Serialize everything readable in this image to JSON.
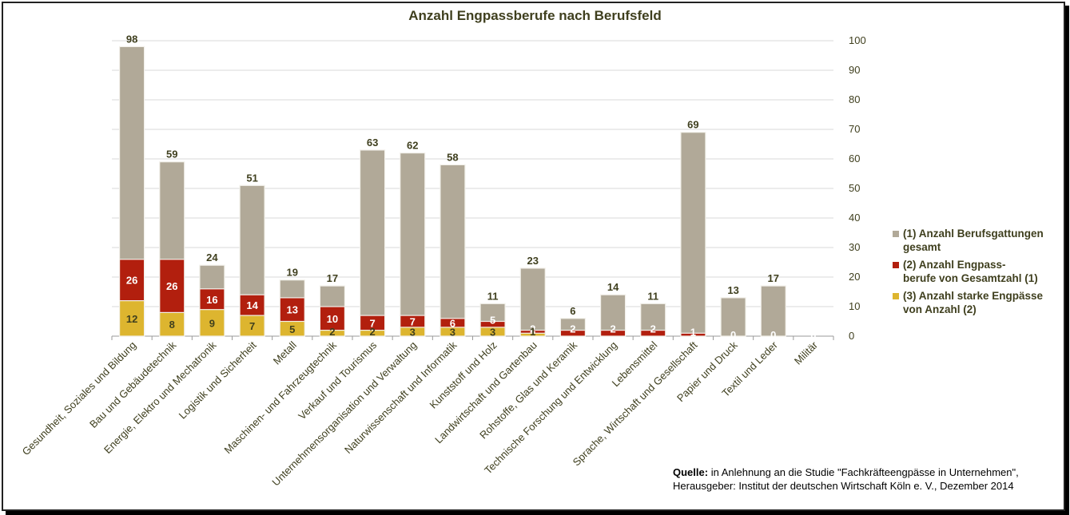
{
  "chart_data": {
    "type": "bar",
    "stacked": false,
    "title": "Anzahl Engpassberufe nach Berufsfeld",
    "categories": [
      "Gesundheit, Soziales und Bildung",
      "Bau und Gebäudetechnik",
      "Energie, Elektro und Mechatronik",
      "Logistik und Sicherheit",
      "Metall",
      "Maschinen- und Fahrzeugtechnik",
      "Verkauf und Tourismus",
      "Unternehmensorganisation und Verwaltung",
      "Naturwissenschaft und Informatik",
      "Kunststoff und Holz",
      "Landwirtschaft und Gartenbau",
      "Rohstoffe, Glas und Keramik",
      "Technische Forschung und Entwicklung",
      "Lebensmittel",
      "Sprache, Wirtschaft und Gesellschaft",
      "Papier und Druck",
      "Textil und Leder",
      "Militär"
    ],
    "series": [
      {
        "name": "(1) Anzahl Berufsgattungen gesamt",
        "color": "#b1a998",
        "values": [
          98,
          59,
          24,
          51,
          19,
          17,
          63,
          62,
          58,
          11,
          23,
          6,
          14,
          11,
          69,
          13,
          17,
          0
        ]
      },
      {
        "name": "(2) Anzahl Engpass- berufe von Gesamtzahl (1)",
        "color": "#b21f0e",
        "values": [
          26,
          26,
          16,
          14,
          13,
          10,
          7,
          7,
          6,
          5,
          2,
          2,
          2,
          2,
          1,
          0,
          0,
          0
        ]
      },
      {
        "name": "(3) Anzahl starke Engpässe von Anzahl (2)",
        "color": "#ddb52f",
        "values": [
          12,
          8,
          9,
          7,
          5,
          2,
          2,
          3,
          3,
          3,
          1,
          0,
          0,
          0,
          0,
          0,
          0,
          0
        ]
      }
    ],
    "ylim": [
      0,
      100
    ],
    "yticks": [
      0,
      10,
      20,
      30,
      40,
      50,
      60,
      70,
      80,
      90,
      100
    ],
    "y_axis_side": "right",
    "grid": true,
    "legend_position": "right"
  },
  "legend": [
    {
      "line1": "(1) Anzahl Berufsgattungen",
      "line2": "gesamt",
      "color": "#b1a998"
    },
    {
      "line1": "(2) Anzahl Engpass-",
      "line2": "berufe von Gesamtzahl (1)",
      "color": "#b21f0e"
    },
    {
      "line1": "(3) Anzahl starke Engpässe",
      "line2": "von Anzahl (2)",
      "color": "#ddb52f"
    }
  ],
  "source": {
    "label": "Quelle:",
    "line1": " in Anlehnung  an die Studie \"Fachkräfteengpässe in Unternehmen\",",
    "line2": "Herausgeber: Institut der deutschen Wirtschaft Köln e. V., Dezember 2014"
  }
}
